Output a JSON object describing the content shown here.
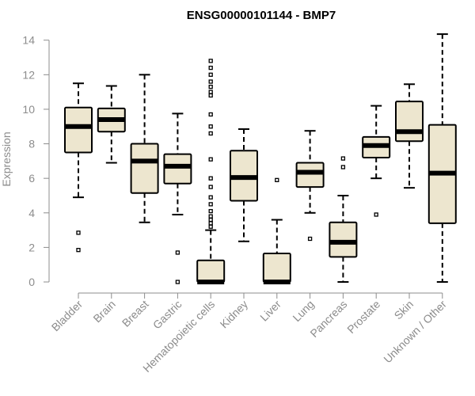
{
  "chart_data": {
    "type": "box",
    "title": "ENSG00000101144 - BMP7",
    "xlabel": "",
    "ylabel": "Expression",
    "ylim": [
      0,
      14.4
    ],
    "yticks": [
      0,
      2,
      4,
      6,
      8,
      10,
      12,
      14
    ],
    "box_fill": "#ede6cf",
    "categories": [
      "Bladder",
      "Brain",
      "Breast",
      "Gastric",
      "Hematopoietic cells",
      "Kidney",
      "Liver",
      "Lung",
      "Pancreas",
      "Prostate",
      "Skin",
      "Unknown / Other"
    ],
    "boxes": [
      {
        "category": "Bladder",
        "whisker_low": 4.9,
        "q1": 7.5,
        "median": 9.0,
        "q3": 10.1,
        "whisker_high": 11.5,
        "outliers": [
          2.85,
          1.85
        ]
      },
      {
        "category": "Brain",
        "whisker_low": 6.9,
        "q1": 8.7,
        "median": 9.4,
        "q3": 10.05,
        "whisker_high": 11.35,
        "outliers": []
      },
      {
        "category": "Breast",
        "whisker_low": 3.45,
        "q1": 5.15,
        "median": 7.0,
        "q3": 8.0,
        "whisker_high": 12.0,
        "outliers": []
      },
      {
        "category": "Gastric",
        "whisker_low": 3.9,
        "q1": 5.7,
        "median": 6.7,
        "q3": 7.4,
        "whisker_high": 9.75,
        "outliers": [
          1.7,
          0.0
        ]
      },
      {
        "category": "Hematopoietic cells",
        "whisker_low": 0.0,
        "q1": 0.0,
        "median": 0.0,
        "q3": 1.25,
        "whisker_high": 3.0,
        "outliers": [
          3.2,
          3.4,
          3.6,
          3.8,
          4.1,
          4.5,
          4.9,
          5.5,
          6.0,
          7.1,
          8.6,
          9.0,
          9.7,
          10.8,
          11.0,
          11.3,
          11.6,
          12.0,
          12.4,
          12.8
        ]
      },
      {
        "category": "Kidney",
        "whisker_low": 2.35,
        "q1": 4.7,
        "median": 6.05,
        "q3": 7.6,
        "whisker_high": 8.85,
        "outliers": []
      },
      {
        "category": "Liver",
        "whisker_low": 0.0,
        "q1": 0.0,
        "median": 0.0,
        "q3": 1.65,
        "whisker_high": 3.6,
        "outliers": [
          5.9
        ]
      },
      {
        "category": "Lung",
        "whisker_low": 4.0,
        "q1": 5.5,
        "median": 6.35,
        "q3": 6.9,
        "whisker_high": 8.75,
        "outliers": [
          2.5
        ]
      },
      {
        "category": "Pancreas",
        "whisker_low": 0.0,
        "q1": 1.45,
        "median": 2.3,
        "q3": 3.45,
        "whisker_high": 5.0,
        "outliers": [
          6.65,
          7.15
        ]
      },
      {
        "category": "Prostate",
        "whisker_low": 6.0,
        "q1": 7.2,
        "median": 7.9,
        "q3": 8.4,
        "whisker_high": 10.2,
        "outliers": [
          3.9
        ]
      },
      {
        "category": "Skin",
        "whisker_low": 5.45,
        "q1": 8.15,
        "median": 8.7,
        "q3": 10.45,
        "whisker_high": 11.45,
        "outliers": []
      },
      {
        "category": "Unknown / Other",
        "whisker_low": 0.0,
        "q1": 3.4,
        "median": 6.3,
        "q3": 9.1,
        "whisker_high": 14.35,
        "outliers": []
      }
    ]
  }
}
